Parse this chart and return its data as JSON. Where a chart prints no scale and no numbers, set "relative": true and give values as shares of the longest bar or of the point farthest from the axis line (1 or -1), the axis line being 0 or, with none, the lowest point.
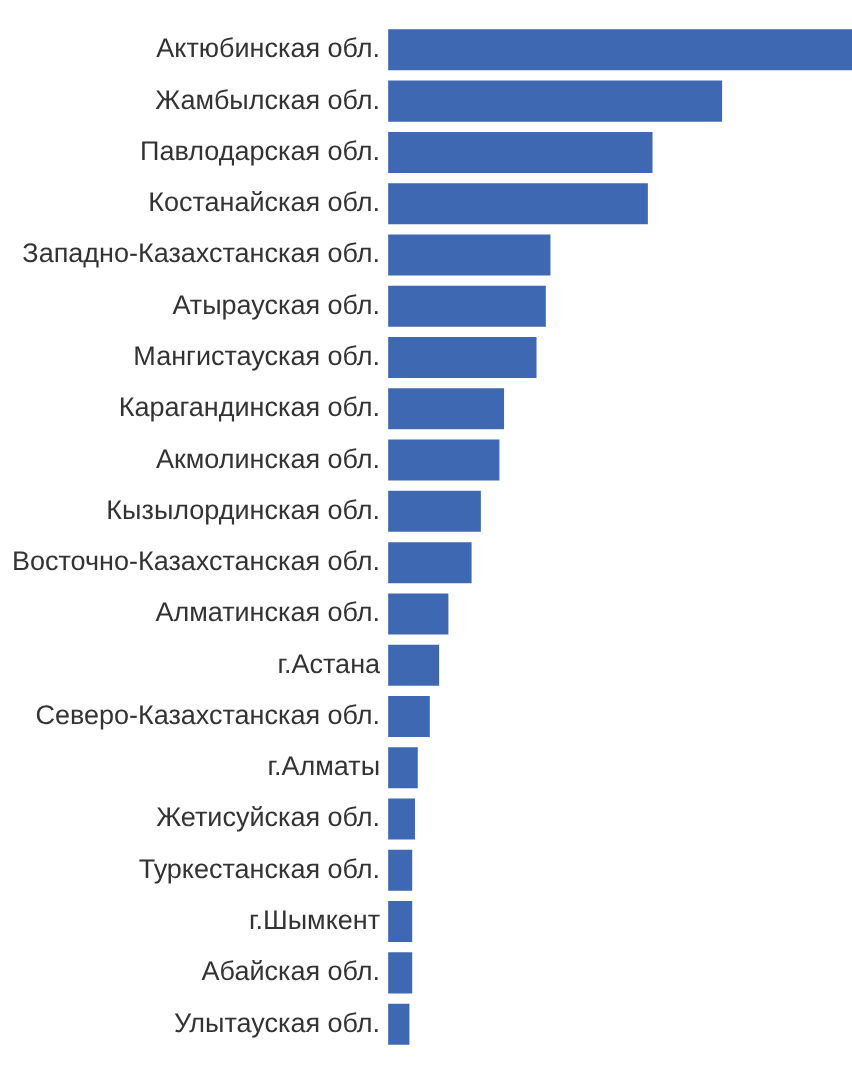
{
  "chart_data": {
    "type": "bar",
    "orientation": "horizontal",
    "relative": true,
    "categories": [
      "Актюбинская обл.",
      "Жамбылская обл.",
      "Павлодарская обл.",
      "Костанайская обл.",
      "Западно-Казахстанская обл.",
      "Атырауская обл.",
      "Мангистауская обл.",
      "Карагандинская обл.",
      "Акмолинская обл.",
      "Кызылординская обл.",
      "Восточно-Казахстанская обл.",
      "Алматинская обл.",
      "г.Астана",
      "Северо-Казахстанская обл.",
      "г.Алматы",
      "Жетисуйская обл.",
      "Туркестанская обл.",
      "г.Шымкент",
      "Абайская обл.",
      "Улытауская обл."
    ],
    "values": [
      1,
      0.72,
      0.57,
      0.56,
      0.35,
      0.34,
      0.32,
      0.25,
      0.24,
      0.2,
      0.18,
      0.13,
      0.11,
      0.09,
      0.064,
      0.058,
      0.052,
      0.052,
      0.052,
      0.046
    ],
    "color": "#3f68b2",
    "grid": false,
    "legend": false
  }
}
